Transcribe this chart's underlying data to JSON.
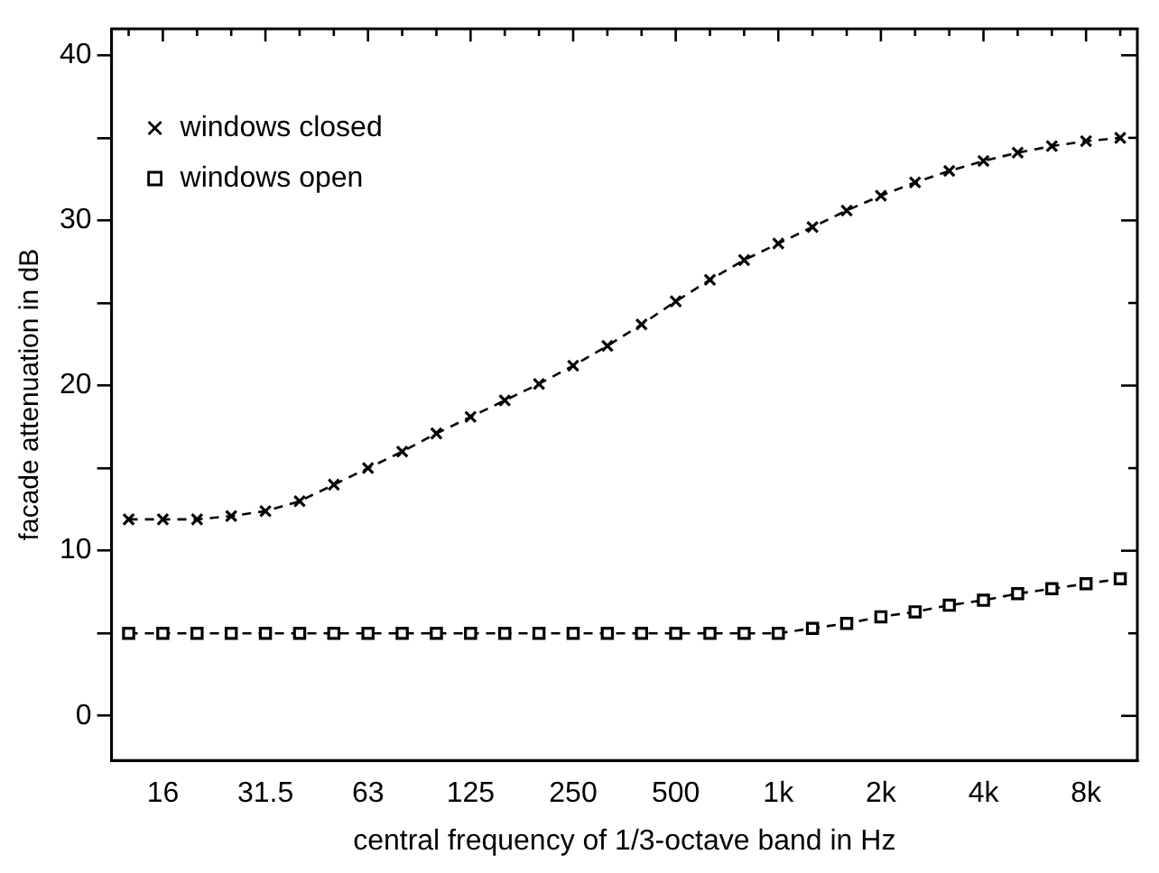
{
  "chart_data": {
    "type": "line",
    "xlabel": "central frequency of 1/3-octave band in Hz",
    "ylabel": "facade attenuation in dB",
    "categories": [
      null,
      "16",
      null,
      null,
      "31.5",
      null,
      null,
      "63",
      null,
      null,
      "125",
      null,
      null,
      "250",
      null,
      null,
      "500",
      null,
      null,
      "1k",
      null,
      null,
      "2k",
      null,
      null,
      "4k",
      null,
      null,
      "8k",
      null
    ],
    "series": [
      {
        "name": "windows closed",
        "color": "#000000",
        "marker": "cross",
        "values": [
          11.9,
          11.9,
          11.9,
          12.1,
          12.4,
          13,
          14,
          15,
          16,
          17.1,
          18.1,
          19.1,
          20.1,
          21.2,
          22.4,
          23.7,
          25.1,
          26.4,
          27.6,
          28.6,
          29.6,
          30.6,
          31.5,
          32.3,
          33,
          33.6,
          34.1,
          34.5,
          34.8,
          35
        ]
      },
      {
        "name": "windows open",
        "color": "#000000",
        "marker": "square",
        "values": [
          5,
          5,
          5,
          5,
          5,
          5,
          5,
          5,
          5,
          5,
          5,
          5,
          5,
          5,
          5,
          5,
          5,
          5,
          5,
          5,
          5.3,
          5.6,
          6,
          6.3,
          6.7,
          7,
          7.4,
          7.7,
          8,
          8.3
        ]
      }
    ],
    "ylim": [
      -2.7,
      41.6
    ],
    "yticks": [
      0,
      {
        "value": 5,
        "label": null
      },
      10,
      {
        "value": 15,
        "label": null
      },
      20,
      {
        "value": 25,
        "label": null
      },
      30,
      {
        "value": 35,
        "label": null
      },
      40
    ],
    "grid": false,
    "legend": "top left",
    "line_style": "dashed"
  }
}
